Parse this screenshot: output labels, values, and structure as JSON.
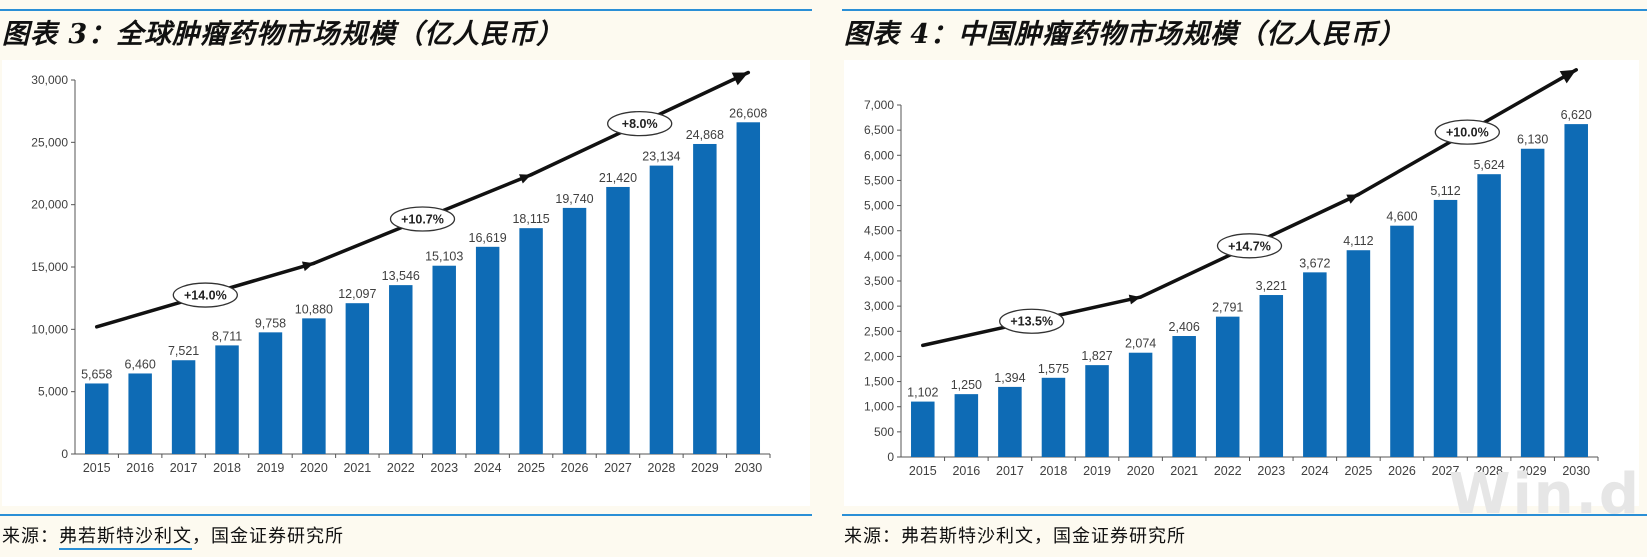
{
  "panels": [
    {
      "title": "图表 3：全球肿瘤药物市场规模（亿人民币）",
      "source_prefix": "来源：",
      "source_main": "弗若斯特沙利文",
      "source_rest": "，国金证券研究所"
    },
    {
      "title": "图表 4：中国肿瘤药物市场规模（亿人民币）",
      "source_prefix": "来源：",
      "source_main": "弗若斯特沙利文",
      "source_rest": "，国金证券研究所"
    }
  ],
  "watermark": "Win.d",
  "colors": {
    "bar": "#0e6bb5",
    "arrow": "#111111",
    "rule": "#2a8fd6"
  },
  "chart_data": [
    {
      "type": "bar",
      "title": "全球肿瘤药物市场规模（亿人民币）",
      "categories": [
        "2015",
        "2016",
        "2017",
        "2018",
        "2019",
        "2020",
        "2021",
        "2022",
        "2023",
        "2024",
        "2025",
        "2026",
        "2027",
        "2028",
        "2029",
        "2030"
      ],
      "values": [
        5658,
        6460,
        7521,
        8711,
        9758,
        10880,
        12097,
        13546,
        15103,
        16619,
        18115,
        19740,
        21420,
        23134,
        24868,
        26608
      ],
      "value_labels": [
        "5,658",
        "6,460",
        "7,521",
        "8,711",
        "9,758",
        "10,880",
        "12,097",
        "13,546",
        "15,103",
        "16,619",
        "18,115",
        "19,740",
        "21,420",
        "23,134",
        "24,868",
        "26,608"
      ],
      "ylim": [
        0,
        30000
      ],
      "yticks": [
        0,
        5000,
        10000,
        15000,
        20000,
        25000,
        30000
      ],
      "ytick_labels": [
        "0",
        "5,000",
        "10,000",
        "15,000",
        "20,000",
        "25,000",
        "30,000"
      ],
      "grid": false,
      "growth_annotations": [
        {
          "label": "+14.0%",
          "from": "2015",
          "to": "2020"
        },
        {
          "label": "+10.7%",
          "from": "2020",
          "to": "2025"
        },
        {
          "label": "+8.0%",
          "from": "2025",
          "to": "2030"
        }
      ],
      "trend_arrow": {
        "points": [
          [
            2015,
            10200
          ],
          [
            2020,
            15300
          ],
          [
            2025,
            22400
          ],
          [
            2030,
            30600
          ]
        ]
      }
    },
    {
      "type": "bar",
      "title": "中国肿瘤药物市场规模（亿人民币）",
      "categories": [
        "2015",
        "2016",
        "2017",
        "2018",
        "2019",
        "2020",
        "2021",
        "2022",
        "2023",
        "2024",
        "2025",
        "2026",
        "2027",
        "2028",
        "2029",
        "2030"
      ],
      "values": [
        1102,
        1250,
        1394,
        1575,
        1827,
        2074,
        2406,
        2791,
        3221,
        3672,
        4112,
        4600,
        5112,
        5624,
        6130,
        6620
      ],
      "value_labels": [
        "1,102",
        "1,250",
        "1,394",
        "1,575",
        "1,827",
        "2,074",
        "2,406",
        "2,791",
        "3,221",
        "3,672",
        "4,112",
        "4,600",
        "5,112",
        "5,624",
        "6,130",
        "6,620"
      ],
      "ylim": [
        0,
        7000
      ],
      "yticks": [
        0,
        500,
        1000,
        1500,
        2000,
        2500,
        3000,
        3500,
        4000,
        4500,
        5000,
        5500,
        6000,
        6500,
        7000
      ],
      "ytick_labels": [
        "0",
        "500",
        "1,000",
        "1,500",
        "2,000",
        "2,500",
        "3,000",
        "3,500",
        "4,000",
        "4,500",
        "5,000",
        "5,500",
        "6,000",
        "6,500",
        "7,000"
      ],
      "grid": false,
      "growth_annotations": [
        {
          "label": "+13.5%",
          "from": "2015",
          "to": "2020"
        },
        {
          "label": "+14.7%",
          "from": "2020",
          "to": "2025"
        },
        {
          "label": "+10.0%",
          "from": "2025",
          "to": "2030"
        }
      ],
      "trend_arrow": {
        "points": [
          [
            2015,
            2220
          ],
          [
            2020,
            3180
          ],
          [
            2025,
            5220
          ],
          [
            2030,
            7700
          ]
        ]
      }
    }
  ]
}
